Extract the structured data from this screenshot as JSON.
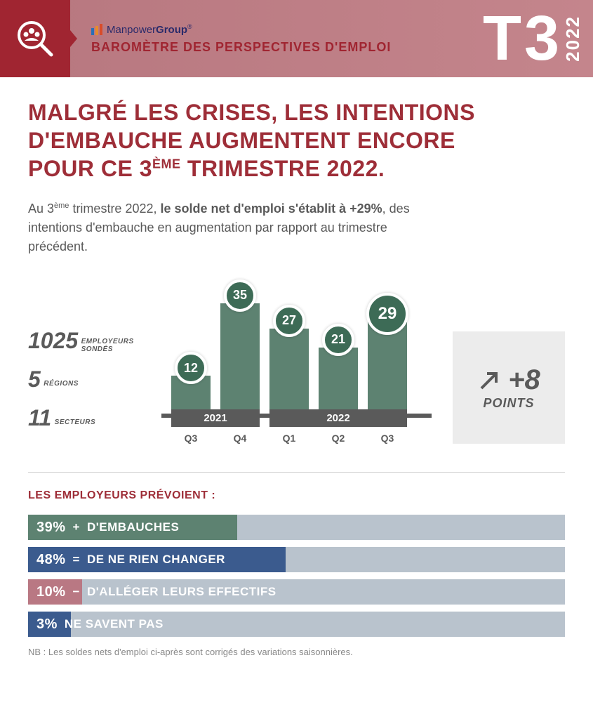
{
  "header": {
    "brand_prefix": "Manpower",
    "brand_suffix": "Group",
    "title": "BAROMÈTRE DES PERSPECTIVES D'EMPLOI",
    "quarter_letter": "T",
    "quarter_number": "3",
    "year": "2022",
    "logo_bar_colors": [
      "#2a6fb5",
      "#e98b2a",
      "#d94b2a"
    ],
    "bg_gradient_from": "#b7777f",
    "bg_gradient_to": "#c4858c",
    "accent_color": "#a02531"
  },
  "headline": {
    "line1": "MALGRÉ LES CRISES, LES INTENTIONS",
    "line2": "D'EMBAUCHE AUGMENTENT ENCORE",
    "line3_pre": "POUR CE 3",
    "line3_sup": "ÈME",
    "line3_post": " TRIMESTRE 2022.",
    "color": "#9e2e38",
    "font_size_pt": 24
  },
  "subtext": {
    "pre": "Au 3",
    "sup": "ème",
    "mid": " trimestre 2022, ",
    "bold": "le solde net d'emploi s'établit à +29%",
    "post": ", des intentions d'embauche en augmentation par rapport au trimestre précédent.",
    "color": "#5a5a5a"
  },
  "stats": [
    {
      "num": "1025",
      "labels": [
        "EMPLOYEURS",
        "SONDÉS"
      ]
    },
    {
      "num": "5",
      "labels": [
        "RÉGIONS"
      ]
    },
    {
      "num": "11",
      "labels": [
        "SECTEURS"
      ]
    }
  ],
  "chart": {
    "type": "bar",
    "ylim": [
      0,
      40
    ],
    "bar_color": "#5d8271",
    "bubble_color": "#3d6b56",
    "highlight_index": 4,
    "bars": [
      {
        "q": "Q3",
        "value": 12,
        "year_group": 0
      },
      {
        "q": "Q4",
        "value": 35,
        "year_group": 0
      },
      {
        "q": "Q1",
        "value": 27,
        "year_group": 1
      },
      {
        "q": "Q2",
        "value": 21,
        "year_group": 1
      },
      {
        "q": "Q3",
        "value": 29,
        "year_group": 1
      }
    ],
    "year_groups": [
      {
        "label": "2021",
        "span": 2
      },
      {
        "label": "2022",
        "span": 3
      }
    ],
    "axis_color": "#5a5a5a"
  },
  "delta_card": {
    "value": "+8",
    "unit": "POINTS",
    "bg": "#ececec",
    "text_color": "#5a5a5a"
  },
  "outlook": {
    "title": "LES EMPLOYEURS PRÉVOIENT :",
    "track_color": "#b9c3cd",
    "bars": [
      {
        "pct": 39,
        "symbol": "+",
        "label": "D'EMBAUCHES",
        "color": "#5d8271"
      },
      {
        "pct": 48,
        "symbol": "=",
        "label": "DE NE RIEN CHANGER",
        "color": "#3b5b8e"
      },
      {
        "pct": 10,
        "symbol": "−",
        "label": "D'ALLÉGER LEURS EFFECTIFS",
        "color": "#b97883"
      },
      {
        "pct": 3,
        "symbol": "",
        "label": "NE SAVENT PAS",
        "color": "#3b5b8e"
      }
    ]
  },
  "note": "NB : Les soldes nets d'emploi ci-après sont corrigés des variations saisonnières."
}
